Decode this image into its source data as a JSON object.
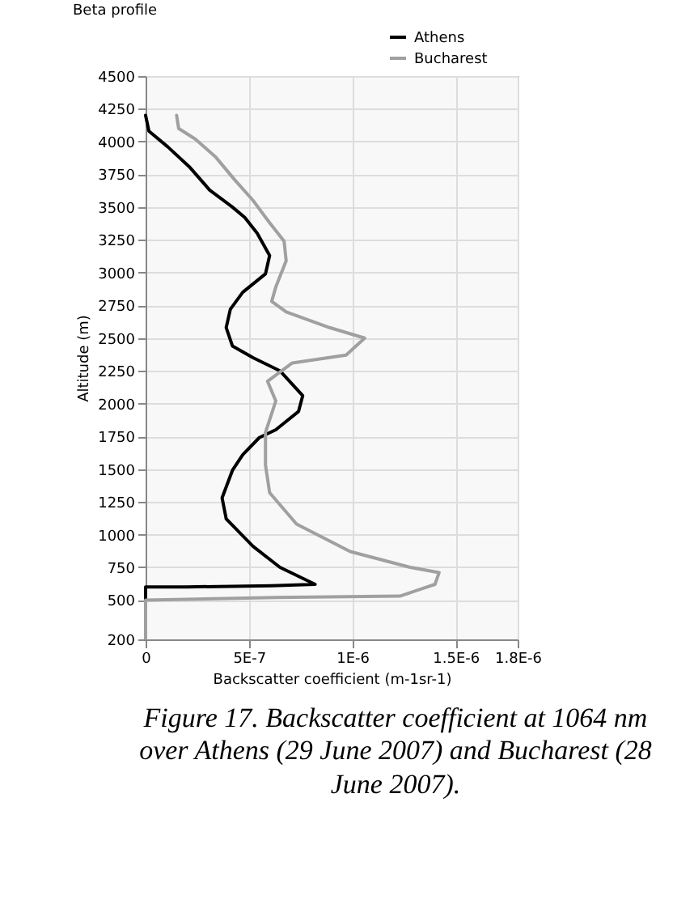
{
  "chart_data": {
    "type": "line",
    "title": "Beta profile",
    "xlabel": "Backscatter coefficient (m-1sr-1)",
    "ylabel": "Altitude (m)",
    "xlim": [
      0,
      1.8e-06
    ],
    "xticks": [
      0,
      {
        "value": 5e-07,
        "label": "5E-7"
      },
      {
        "value": 1e-06,
        "label": "1E-6"
      },
      {
        "value": 1.5e-06,
        "label": "1.5E-6"
      },
      {
        "value": 1.8e-06,
        "label": "1.8E-6"
      }
    ],
    "ylim": [
      200,
      4500
    ],
    "yticks": [
      200,
      500,
      750,
      1000,
      1250,
      1500,
      1750,
      2000,
      2250,
      2500,
      2750,
      3000,
      3250,
      3500,
      3750,
      4000,
      4250,
      4500
    ],
    "grid": true,
    "legend": "top right",
    "line_style": "solid",
    "marker": "none",
    "series": [
      {
        "name": "Athens",
        "color": "#000000",
        "x": [
          0,
          1.6e-08,
          1.07e-07,
          2.1e-07,
          3.1e-07,
          4.2e-07,
          4.8e-07,
          5.4e-07,
          6e-07,
          5.8e-07,
          4.7e-07,
          4.1e-07,
          3.9e-07,
          4.2e-07,
          5.2e-07,
          6.5e-07,
          7.6e-07,
          7.4e-07,
          6.3e-07,
          5.5e-07,
          4.7e-07,
          4.2e-07,
          3.7e-07,
          3.9e-07,
          5.2e-07,
          6.5e-07,
          8.2e-07,
          6.1e-07,
          2e-07,
          0,
          0
        ],
        "values": [
          4200,
          4080,
          3960,
          3810,
          3630,
          3500,
          3420,
          3300,
          3130,
          2990,
          2850,
          2720,
          2580,
          2440,
          2350,
          2250,
          2060,
          1940,
          1800,
          1740,
          1610,
          1490,
          1280,
          1120,
          910,
          750,
          620,
          610,
          600,
          600,
          200
        ]
      },
      {
        "name": "Bucharest",
        "color": "#a0a0a0",
        "x": [
          1.5e-07,
          1.6e-07,
          2.4e-07,
          3.4e-07,
          4.3e-07,
          5.2e-07,
          6e-07,
          6.7e-07,
          6.8e-07,
          6.3e-07,
          6.1e-07,
          6.8e-07,
          8.9e-07,
          1.06e-06,
          9.7e-07,
          7.1e-07,
          5.9e-07,
          6.3e-07,
          5.8e-07,
          5.8e-07,
          6e-07,
          7.3e-07,
          9.9e-07,
          1.28e-06,
          1.42e-06,
          1.4e-06,
          1.23e-06,
          6.3e-07,
          0,
          0
        ],
        "values": [
          4200,
          4100,
          4020,
          3880,
          3710,
          3550,
          3380,
          3240,
          3090,
          2890,
          2780,
          2700,
          2580,
          2500,
          2370,
          2310,
          2170,
          2020,
          1780,
          1530,
          1320,
          1080,
          870,
          750,
          710,
          620,
          530,
          520,
          500,
          200
        ]
      }
    ],
    "annotations": [
      "Figure 17. Backscatter coefficient at 1064 nm over Athens  (29 June 2007) and Bucharest (28 June 2007)."
    ]
  }
}
